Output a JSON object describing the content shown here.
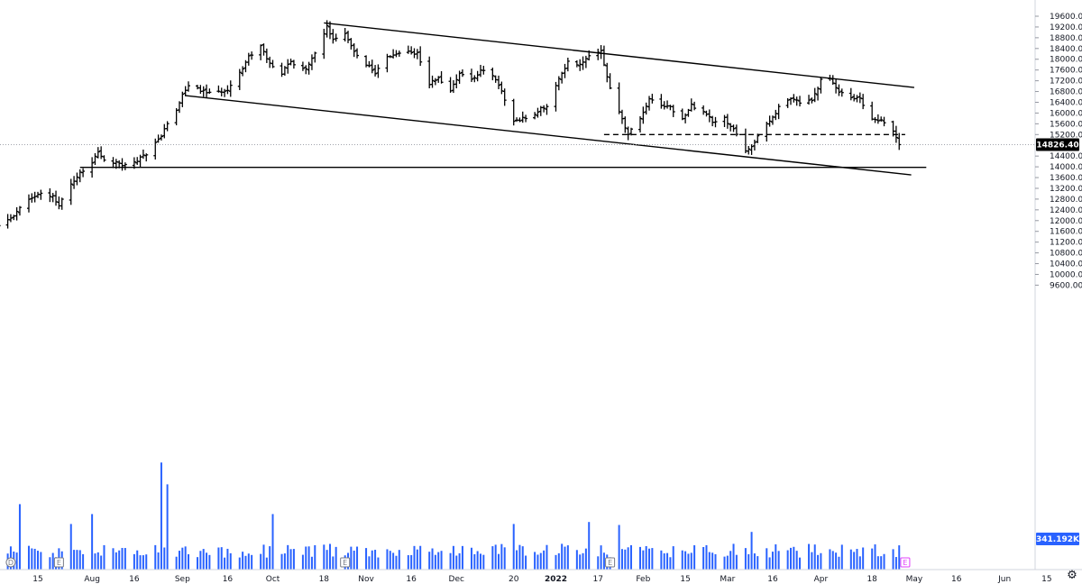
{
  "chart_data": {
    "type": "ohlc",
    "title": "",
    "price_axis": {
      "ticks": [
        "19600.00",
        "19200.00",
        "18800.00",
        "18400.00",
        "18000.00",
        "17600.00",
        "17200.00",
        "16800.00",
        "16400.00",
        "16000.00",
        "15600.00",
        "15200.00",
        "14400.00",
        "14000.00",
        "13600.00",
        "13200.00",
        "12800.00",
        "12400.00",
        "12000.00",
        "11600.00",
        "11200.00",
        "10800.00",
        "10400.00",
        "10000.00",
        "9600.00"
      ],
      "range": [
        9400,
        19800
      ]
    },
    "last_price": {
      "label": "14826.40",
      "value": 14826.4
    },
    "volume": {
      "label": "341.192K",
      "value": 341192
    },
    "date_axis": {
      "ticks": [
        {
          "label": "15",
          "date": "2021-07-15",
          "bold": false
        },
        {
          "label": "Aug",
          "date": "2021-08-02",
          "bold": false
        },
        {
          "label": "16",
          "date": "2021-08-16",
          "bold": false
        },
        {
          "label": "Sep",
          "date": "2021-09-01",
          "bold": false
        },
        {
          "label": "16",
          "date": "2021-09-16",
          "bold": false
        },
        {
          "label": "Oct",
          "date": "2021-10-01",
          "bold": false
        },
        {
          "label": "18",
          "date": "2021-10-18",
          "bold": false
        },
        {
          "label": "Nov",
          "date": "2021-11-01",
          "bold": false
        },
        {
          "label": "16",
          "date": "2021-11-16",
          "bold": false
        },
        {
          "label": "Dec",
          "date": "2021-12-01",
          "bold": false
        },
        {
          "label": "20",
          "date": "2021-12-20",
          "bold": false
        },
        {
          "label": "2022",
          "date": "2022-01-03",
          "bold": true
        },
        {
          "label": "17",
          "date": "2022-01-17",
          "bold": false
        },
        {
          "label": "Feb",
          "date": "2022-02-01",
          "bold": false
        },
        {
          "label": "15",
          "date": "2022-02-15",
          "bold": false
        },
        {
          "label": "Mar",
          "date": "2022-03-01",
          "bold": false
        },
        {
          "label": "16",
          "date": "2022-03-16",
          "bold": false
        },
        {
          "label": "Apr",
          "date": "2022-04-01",
          "bold": false
        },
        {
          "label": "18",
          "date": "2022-04-18",
          "bold": false
        },
        {
          "label": "May",
          "date": "2022-05-02",
          "bold": false
        },
        {
          "label": "16",
          "date": "2022-05-16",
          "bold": false
        },
        {
          "label": "Jun",
          "date": "2022-06-01",
          "bold": false
        },
        {
          "label": "15",
          "date": "2022-06-15",
          "bold": false
        }
      ]
    },
    "event_markers": [
      {
        "label": "D",
        "date": "2021-07-06",
        "color": "#787b86"
      },
      {
        "label": "E",
        "date": "2021-07-22",
        "color": "#787b86"
      },
      {
        "label": "E",
        "date": "2021-10-25",
        "color": "#787b86"
      },
      {
        "label": "E",
        "date": "2022-01-21",
        "color": "#787b86"
      },
      {
        "label": "E",
        "date": "2022-04-29",
        "color": "#e040fb"
      }
    ],
    "price_path": [
      [
        "2021-07-01",
        11700
      ],
      [
        "2021-07-06",
        12100
      ],
      [
        "2021-07-09",
        12450
      ],
      [
        "2021-07-13",
        12850
      ],
      [
        "2021-07-16",
        13050
      ],
      [
        "2021-07-20",
        12900
      ],
      [
        "2021-07-22",
        12600
      ],
      [
        "2021-07-26",
        13300
      ],
      [
        "2021-07-29",
        13750
      ],
      [
        "2021-08-02",
        14200
      ],
      [
        "2021-08-04",
        14500
      ],
      [
        "2021-08-06",
        14250
      ],
      [
        "2021-08-10",
        14150
      ],
      [
        "2021-08-13",
        14050
      ],
      [
        "2021-08-17",
        14250
      ],
      [
        "2021-08-20",
        14500
      ],
      [
        "2021-08-24",
        15000
      ],
      [
        "2021-08-27",
        15550
      ],
      [
        "2021-08-30",
        16150
      ],
      [
        "2021-09-01",
        16700
      ],
      [
        "2021-09-03",
        17000
      ],
      [
        "2021-09-08",
        16800
      ],
      [
        "2021-09-13",
        16750
      ],
      [
        "2021-09-16",
        16900
      ],
      [
        "2021-09-20",
        17500
      ],
      [
        "2021-09-23",
        18100
      ],
      [
        "2021-09-27",
        18500
      ],
      [
        "2021-09-30",
        17800
      ],
      [
        "2021-10-04",
        17500
      ],
      [
        "2021-10-07",
        17900
      ],
      [
        "2021-10-12",
        17600
      ],
      [
        "2021-10-15",
        18200
      ],
      [
        "2021-10-19",
        19200
      ],
      [
        "2021-10-21",
        18700
      ],
      [
        "2021-10-25",
        18900
      ],
      [
        "2021-10-28",
        18300
      ],
      [
        "2021-11-01",
        17800
      ],
      [
        "2021-11-04",
        17500
      ],
      [
        "2021-11-08",
        18100
      ],
      [
        "2021-11-11",
        18200
      ],
      [
        "2021-11-15",
        18300
      ],
      [
        "2021-11-18",
        18200
      ],
      [
        "2021-11-22",
        17100
      ],
      [
        "2021-11-25",
        17300
      ],
      [
        "2021-11-29",
        16800
      ],
      [
        "2021-12-02",
        17500
      ],
      [
        "2021-12-06",
        17200
      ],
      [
        "2021-12-09",
        17600
      ],
      [
        "2021-12-13",
        17400
      ],
      [
        "2021-12-16",
        16800
      ],
      [
        "2021-12-20",
        15700
      ],
      [
        "2021-12-23",
        15800
      ],
      [
        "2021-12-27",
        16000
      ],
      [
        "2021-12-31",
        16300
      ],
      [
        "2022-01-04",
        17300
      ],
      [
        "2022-01-07",
        17900
      ],
      [
        "2022-01-11",
        17800
      ],
      [
        "2022-01-14",
        18100
      ],
      [
        "2022-01-18",
        18300
      ],
      [
        "2022-01-20",
        17300
      ],
      [
        "2022-01-24",
        16000
      ],
      [
        "2022-01-27",
        15200
      ],
      [
        "2022-01-31",
        15800
      ],
      [
        "2022-02-03",
        16500
      ],
      [
        "2022-02-07",
        16300
      ],
      [
        "2022-02-10",
        16200
      ],
      [
        "2022-02-14",
        15800
      ],
      [
        "2022-02-17",
        16300
      ],
      [
        "2022-02-21",
        16000
      ],
      [
        "2022-02-24",
        15700
      ],
      [
        "2022-02-28",
        15800
      ],
      [
        "2022-03-03",
        15400
      ],
      [
        "2022-03-07",
        14600
      ],
      [
        "2022-03-09",
        14700
      ],
      [
        "2022-03-11",
        15100
      ],
      [
        "2022-03-15",
        15700
      ],
      [
        "2022-03-18",
        16200
      ],
      [
        "2022-03-22",
        16500
      ],
      [
        "2022-03-25",
        16400
      ],
      [
        "2022-03-29",
        16500
      ],
      [
        "2022-04-01",
        17200
      ],
      [
        "2022-04-04",
        17300
      ],
      [
        "2022-04-07",
        16800
      ],
      [
        "2022-04-11",
        16600
      ],
      [
        "2022-04-14",
        16500
      ],
      [
        "2022-04-18",
        15800
      ],
      [
        "2022-04-21",
        15700
      ],
      [
        "2022-04-25",
        15300
      ],
      [
        "2022-04-27",
        14826.4
      ]
    ],
    "volume_spikes": [
      [
        "2021-07-09",
        6.6
      ],
      [
        "2021-07-26",
        4.6
      ],
      [
        "2021-08-02",
        5.6
      ],
      [
        "2021-08-25",
        10.8
      ],
      [
        "2021-08-27",
        8.6
      ],
      [
        "2021-10-01",
        5.6
      ],
      [
        "2021-12-20",
        4.6
      ],
      [
        "2022-01-14",
        4.8
      ],
      [
        "2022-01-24",
        4.5
      ],
      [
        "2022-03-09",
        3.8
      ]
    ],
    "trendlines": [
      {
        "from": [
          "2021-10-18",
          19350
        ],
        "to": [
          "2022-05-02",
          16950
        ],
        "style": "solid"
      },
      {
        "from": [
          "2021-09-02",
          16650
        ],
        "to": [
          "2022-05-01",
          13700
        ],
        "style": "solid"
      },
      {
        "from": [
          "2021-07-29",
          13980
        ],
        "to": [
          "2022-05-06",
          13980
        ],
        "style": "solid"
      },
      {
        "from": [
          "2022-01-19",
          15200
        ],
        "to": [
          "2022-04-29",
          15200
        ],
        "style": "dashed"
      }
    ],
    "colors": {
      "bars": "#000000",
      "volume": "#2962ff",
      "label_bg": "#000000",
      "label_text": "#ffffff",
      "volume_label_bg": "#2962ff",
      "grid_line": "#9598a1"
    }
  }
}
